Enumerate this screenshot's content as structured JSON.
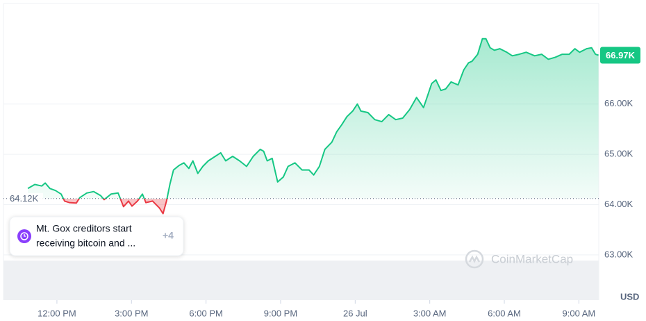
{
  "chart_data": {
    "type": "line",
    "x": [
      10.83,
      11.11,
      11.39,
      11.53,
      11.72,
      11.94,
      12.17,
      12.31,
      12.5,
      12.78,
      12.92,
      13.2,
      13.48,
      13.76,
      13.9,
      14.18,
      14.46,
      14.68,
      14.88,
      15.02,
      15.24,
      15.44,
      15.58,
      15.85,
      16.13,
      16.27,
      16.41,
      16.55,
      16.69,
      16.92,
      17.11,
      17.31,
      17.47,
      17.67,
      17.87,
      18.09,
      18.37,
      18.59,
      18.79,
      19.07,
      19.35,
      19.63,
      19.9,
      20.18,
      20.32,
      20.46,
      20.66,
      20.88,
      21.11,
      21.3,
      21.58,
      21.86,
      22.14,
      22.33,
      22.56,
      22.78,
      23.06,
      23.26,
      23.45,
      23.67,
      23.9,
      24.09,
      24.23,
      24.51,
      24.79,
      25.07,
      25.35,
      25.63,
      25.91,
      26.19,
      26.47,
      26.75,
      26.89,
      27.08,
      27.25,
      27.45,
      27.64,
      27.86,
      28.14,
      28.37,
      28.56,
      28.7,
      28.93,
      29.12,
      29.26,
      29.43,
      29.6,
      29.82,
      30.1,
      30.32,
      30.6,
      30.88,
      31.22,
      31.5,
      31.77,
      32.05,
      32.33,
      32.61,
      32.84,
      33.03,
      33.31,
      33.51,
      33.67,
      33.79
    ],
    "series": [
      {
        "name": "Price",
        "color": "#16c784",
        "down_color": "#ea3943",
        "values": [
          64320,
          64400,
          64370,
          64430,
          64320,
          64280,
          64210,
          64070,
          64040,
          64030,
          64140,
          64230,
          64260,
          64180,
          64100,
          64210,
          64230,
          63960,
          64070,
          63970,
          64070,
          64210,
          64040,
          64070,
          63930,
          63820,
          64070,
          64410,
          64690,
          64780,
          64830,
          64720,
          64870,
          64620,
          64760,
          64870,
          64960,
          65030,
          64870,
          64960,
          64870,
          64760,
          64960,
          65100,
          65060,
          64870,
          64920,
          64450,
          64550,
          64760,
          64830,
          64690,
          64690,
          64590,
          64760,
          65100,
          65240,
          65450,
          65580,
          65750,
          65860,
          66000,
          65860,
          65830,
          65690,
          65650,
          65790,
          65690,
          65720,
          65890,
          66130,
          65930,
          66130,
          66410,
          66480,
          66270,
          66300,
          66440,
          66380,
          66680,
          66820,
          66850,
          66990,
          67300,
          67300,
          67120,
          67070,
          67100,
          67030,
          66960,
          66990,
          67030,
          66960,
          66990,
          66890,
          66930,
          66990,
          66990,
          67100,
          67030,
          67100,
          67120,
          66990,
          66970
        ]
      }
    ],
    "xlim": [
      9.85,
      33.8
    ],
    "xticks": [
      {
        "value": 12,
        "label": "12:00 PM"
      },
      {
        "value": 15,
        "label": "3:00 PM"
      },
      {
        "value": 18,
        "label": "6:00 PM"
      },
      {
        "value": 21,
        "label": "9:00 PM"
      },
      {
        "value": 24,
        "label": "26 Jul"
      },
      {
        "value": 27,
        "label": "3:00 AM"
      },
      {
        "value": 30,
        "label": "6:00 AM"
      },
      {
        "value": 33,
        "label": "9:00 AM"
      }
    ],
    "ylim": [
      62100,
      68000
    ],
    "yticks": [
      {
        "value": 63000,
        "label": "63.00K"
      },
      {
        "value": 64000,
        "label": "64.00K"
      },
      {
        "value": 65000,
        "label": "65.00K"
      },
      {
        "value": 66000,
        "label": "66.00K"
      }
    ],
    "baseline": {
      "value": 64120,
      "label": "64.12K"
    },
    "last_price": {
      "value": 66970,
      "label": "66.97K"
    },
    "currency": "USD",
    "watermark": "CoinMarketCap",
    "event": {
      "line1": "Mt. Gox creditors start",
      "line2": "receiving bitcoin and ...",
      "more": "+4"
    },
    "grid": true
  }
}
